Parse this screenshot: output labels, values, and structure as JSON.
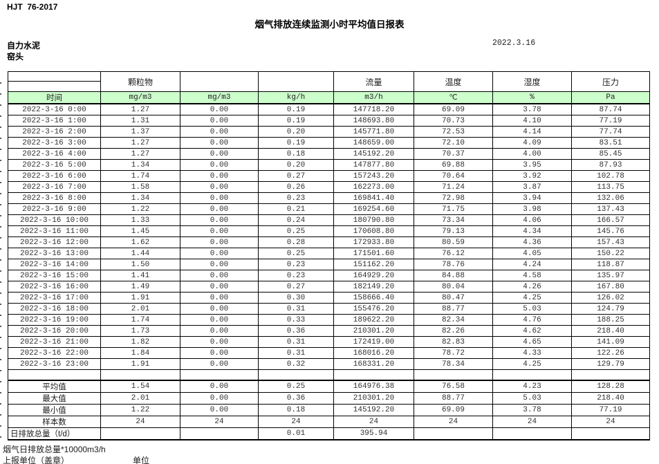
{
  "page": {
    "standard_code": "HJT  76-2017",
    "title": "烟气排放连续监测小时平均值日报表",
    "company": "自力水泥",
    "station": "窑头",
    "date": "2022.3.16"
  },
  "table": {
    "colors": {
      "header_fill": "#ccffcc",
      "border": "#000000"
    },
    "group_headers": {
      "particulate": "颗粒物",
      "flow": "流量",
      "temperature": "温度",
      "humidity": "湿度",
      "pressure": "压力"
    },
    "units_row": [
      "时间",
      "mg/m3",
      "mg/m3",
      "kg/h",
      "m3/h",
      "℃",
      "%",
      "Pa"
    ],
    "rows": [
      {
        "time": "2022-3-16 0:00",
        "values": [
          "1.27",
          "0.00",
          "0.19",
          "147718.20",
          "69.09",
          "3.78",
          "87.74"
        ]
      },
      {
        "time": "2022-3-16 1:00",
        "values": [
          "1.31",
          "0.00",
          "0.19",
          "148693.80",
          "70.73",
          "4.10",
          "77.19"
        ]
      },
      {
        "time": "2022-3-16 2:00",
        "values": [
          "1.37",
          "0.00",
          "0.20",
          "145771.80",
          "72.53",
          "4.14",
          "77.74"
        ]
      },
      {
        "time": "2022-3-16 3:00",
        "values": [
          "1.27",
          "0.00",
          "0.19",
          "148659.00",
          "72.10",
          "4.09",
          "83.51"
        ]
      },
      {
        "time": "2022-3-16 4:00",
        "values": [
          "1.27",
          "0.00",
          "0.18",
          "145192.20",
          "70.37",
          "4.00",
          "85.45"
        ]
      },
      {
        "time": "2022-3-16 5:00",
        "values": [
          "1.34",
          "0.00",
          "0.20",
          "147877.80",
          "69.88",
          "3.95",
          "87.93"
        ]
      },
      {
        "time": "2022-3-16 6:00",
        "values": [
          "1.74",
          "0.00",
          "0.27",
          "157243.20",
          "70.64",
          "3.92",
          "102.78"
        ]
      },
      {
        "time": "2022-3-16 7:00",
        "values": [
          "1.58",
          "0.00",
          "0.26",
          "162273.00",
          "71.24",
          "3.87",
          "113.75"
        ]
      },
      {
        "time": "2022-3-16 8:00",
        "values": [
          "1.34",
          "0.00",
          "0.23",
          "169841.40",
          "72.98",
          "3.94",
          "132.06"
        ]
      },
      {
        "time": "2022-3-16 9:00",
        "values": [
          "1.22",
          "0.00",
          "0.21",
          "169254.60",
          "71.75",
          "3.98",
          "137.43"
        ]
      },
      {
        "time": "2022-3-16 10:00",
        "values": [
          "1.33",
          "0.00",
          "0.24",
          "180790.80",
          "73.34",
          "4.06",
          "166.57"
        ]
      },
      {
        "time": "2022-3-16 11:00",
        "values": [
          "1.45",
          "0.00",
          "0.25",
          "170608.80",
          "79.13",
          "4.34",
          "145.76"
        ]
      },
      {
        "time": "2022-3-16 12:00",
        "values": [
          "1.62",
          "0.00",
          "0.28",
          "172933.80",
          "80.59",
          "4.36",
          "157.43"
        ]
      },
      {
        "time": "2022-3-16 13:00",
        "values": [
          "1.44",
          "0.00",
          "0.25",
          "171501.60",
          "76.12",
          "4.05",
          "150.22"
        ]
      },
      {
        "time": "2022-3-16 14:00",
        "values": [
          "1.50",
          "0.00",
          "0.23",
          "151162.20",
          "78.76",
          "4.24",
          "118.87"
        ]
      },
      {
        "time": "2022-3-16 15:00",
        "values": [
          "1.41",
          "0.00",
          "0.23",
          "164929.20",
          "84.88",
          "4.58",
          "135.97"
        ]
      },
      {
        "time": "2022-3-16 16:00",
        "values": [
          "1.49",
          "0.00",
          "0.27",
          "182149.20",
          "80.04",
          "4.26",
          "167.80"
        ]
      },
      {
        "time": "2022-3-16 17:00",
        "values": [
          "1.91",
          "0.00",
          "0.30",
          "158666.40",
          "80.47",
          "4.25",
          "126.02"
        ]
      },
      {
        "time": "2022-3-16 18:00",
        "values": [
          "2.01",
          "0.00",
          "0.31",
          "155476.20",
          "88.77",
          "5.03",
          "124.79"
        ]
      },
      {
        "time": "2022-3-16 19:00",
        "values": [
          "1.74",
          "0.00",
          "0.33",
          "189622.20",
          "82.34",
          "4.76",
          "188.25"
        ]
      },
      {
        "time": "2022-3-16 20:00",
        "values": [
          "1.73",
          "0.00",
          "0.36",
          "210301.20",
          "82.26",
          "4.62",
          "218.40"
        ]
      },
      {
        "time": "2022-3-16 21:00",
        "values": [
          "1.82",
          "0.00",
          "0.31",
          "172419.00",
          "82.83",
          "4.65",
          "141.09"
        ]
      },
      {
        "time": "2022-3-16 22:00",
        "values": [
          "1.84",
          "0.00",
          "0.31",
          "168016.20",
          "78.72",
          "4.33",
          "122.26"
        ]
      },
      {
        "time": "2022-3-16 23:00",
        "values": [
          "1.91",
          "0.00",
          "0.32",
          "168331.20",
          "78.34",
          "4.25",
          "129.79"
        ]
      }
    ],
    "summary_rows": [
      {
        "label": "平均值",
        "values": [
          "1.54",
          "0.00",
          "0.25",
          "164976.38",
          "76.58",
          "4.23",
          "128.28"
        ]
      },
      {
        "label": "最大值",
        "values": [
          "2.01",
          "0.00",
          "0.36",
          "210301.20",
          "88.77",
          "5.03",
          "218.40"
        ]
      },
      {
        "label": "最小值",
        "values": [
          "1.22",
          "0.00",
          "0.18",
          "145192.20",
          "69.09",
          "3.78",
          "77.19"
        ]
      },
      {
        "label": "样本数",
        "values": [
          "24",
          "24",
          "24",
          "24",
          "24",
          "24",
          "24"
        ]
      },
      {
        "label": "日排放总量（t/d）",
        "values": [
          "",
          "",
          "0.01",
          "395.94",
          "",
          "",
          ""
        ]
      }
    ]
  },
  "footer": {
    "note1": "烟气日排放总量*10000m3/h",
    "note2": "上报单位（盖章）",
    "note3": "单位"
  }
}
